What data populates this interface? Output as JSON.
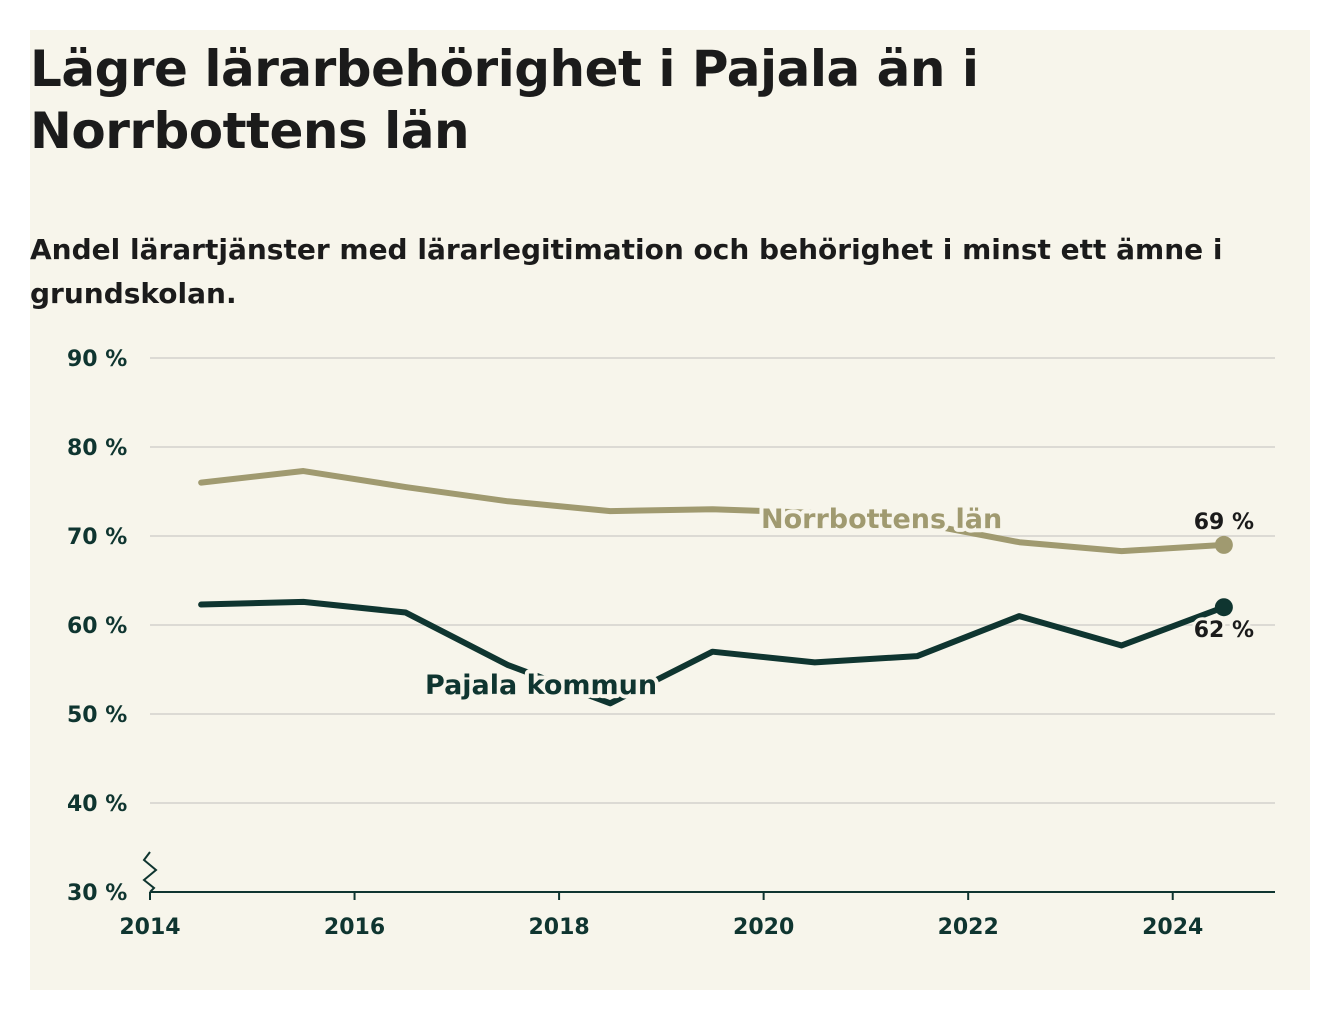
{
  "title": "Lägre lärarbehörighet i Pajala än i Norrbottens län",
  "subtitle": "Andel lärartjänster med lärarlegitimation och behörighet i minst ett ämne i grundskolan.",
  "chart_data": {
    "type": "line",
    "x": [
      2014.5,
      2015.5,
      2016.5,
      2017.5,
      2018.5,
      2019.5,
      2020.5,
      2021.5,
      2022.5,
      2023.5,
      2024.5
    ],
    "series": [
      {
        "name": "Norrbottens län",
        "values": [
          76,
          77.3,
          75.5,
          73.9,
          72.8,
          73.0,
          72.6,
          71.5,
          69.3,
          68.3,
          69
        ],
        "color": "#a09a70",
        "end_label": "69 %"
      },
      {
        "name": "Pajala kommun",
        "values": [
          62.3,
          62.6,
          61.4,
          55.5,
          51.2,
          57.0,
          55.8,
          56.5,
          61.0,
          57.7,
          62
        ],
        "color": "#0f3530",
        "end_label": "62 %"
      }
    ],
    "xticks": [
      "2014",
      "2016",
      "2018",
      "2020",
      "2022",
      "2024"
    ],
    "xtick_values": [
      2014,
      2016,
      2018,
      2020,
      2022,
      2024
    ],
    "yticks": [
      "30 %",
      "40 %",
      "50 %",
      "60 %",
      "70 %",
      "80 %",
      "90 %"
    ],
    "ytick_values": [
      30,
      40,
      50,
      60,
      70,
      80,
      90
    ],
    "xlim": [
      2014,
      2025
    ],
    "ylim": [
      30,
      90
    ],
    "grid": true,
    "legend": "inline",
    "axis_color": "#0f3530",
    "grid_color": "#dcdad4"
  }
}
